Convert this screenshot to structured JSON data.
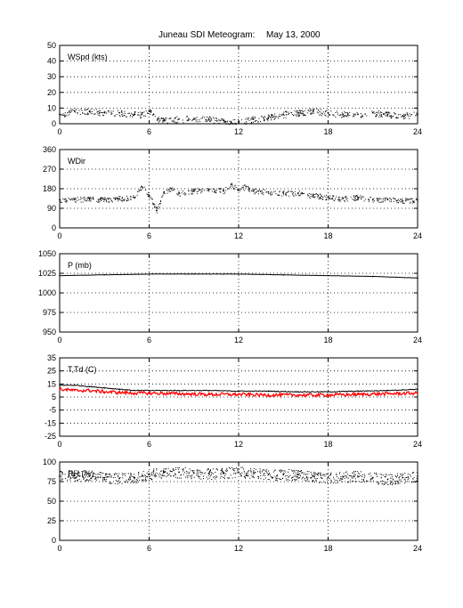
{
  "figure": {
    "title": "Juneau SDI Meteogram:",
    "date": "May 13, 2000"
  },
  "chart_data": [
    {
      "type": "scatter",
      "label": "WSpd (kts)",
      "xlim": [
        0,
        24
      ],
      "ylim": [
        0,
        50
      ],
      "xticks": [
        0,
        6,
        12,
        18,
        24
      ],
      "yticks": [
        0,
        10,
        20,
        30,
        40,
        50
      ],
      "grid": true,
      "series": [
        {
          "color": "#000000",
          "x": [
            0,
            1,
            2,
            3,
            4,
            5,
            5.5,
            6,
            6.3,
            6.6,
            7,
            8,
            9,
            10,
            11,
            11.5,
            12,
            13,
            14,
            15,
            16,
            17,
            18,
            19,
            20,
            21,
            22,
            23,
            24
          ],
          "y": [
            6,
            8,
            8,
            7,
            7,
            6,
            6,
            8,
            6,
            3,
            2,
            3,
            3,
            3,
            2,
            1,
            1,
            3,
            4,
            6,
            7,
            8,
            7,
            6,
            6,
            7,
            6,
            5,
            6
          ]
        }
      ]
    },
    {
      "type": "scatter",
      "label": "WDir",
      "xlim": [
        0,
        24
      ],
      "ylim": [
        0,
        360
      ],
      "xticks": [
        0,
        6,
        12,
        18,
        24
      ],
      "yticks": [
        0,
        90,
        180,
        270,
        360
      ],
      "grid": true,
      "series": [
        {
          "color": "#000000",
          "x": [
            0,
            1,
            2,
            3,
            4,
            5,
            5.5,
            6,
            6.3,
            6.5,
            7,
            7.5,
            8,
            9,
            10,
            11,
            11.5,
            12,
            12.5,
            13,
            14,
            15,
            16,
            17,
            18,
            19,
            20,
            21,
            22,
            23,
            24
          ],
          "y": [
            130,
            130,
            135,
            130,
            135,
            140,
            190,
            150,
            110,
            80,
            165,
            180,
            160,
            170,
            175,
            170,
            200,
            175,
            190,
            170,
            165,
            160,
            160,
            150,
            140,
            135,
            140,
            130,
            130,
            125,
            130
          ]
        }
      ]
    },
    {
      "type": "line",
      "label": "P (mb)",
      "xlim": [
        0,
        24
      ],
      "ylim": [
        950,
        1050
      ],
      "xticks": [
        0,
        6,
        12,
        18,
        24
      ],
      "yticks": [
        950,
        975,
        1000,
        1025,
        1050
      ],
      "grid": true,
      "series": [
        {
          "color": "#000000",
          "x": [
            0,
            3,
            6,
            9,
            12,
            15,
            18,
            21,
            24
          ],
          "y": [
            1022,
            1023,
            1024,
            1024,
            1024,
            1023,
            1022,
            1021,
            1019
          ]
        }
      ]
    },
    {
      "type": "line",
      "label": "T,Td (C)",
      "xlim": [
        0,
        24
      ],
      "ylim": [
        -25,
        35
      ],
      "xticks": [
        0,
        6,
        12,
        18,
        24
      ],
      "yticks": [
        -25,
        -15,
        -5,
        5,
        15,
        25,
        35
      ],
      "grid": true,
      "series": [
        {
          "color": "#000000",
          "x": [
            0,
            1,
            2,
            3,
            4,
            5,
            6,
            8,
            10,
            12,
            14,
            16,
            18,
            20,
            22,
            24
          ],
          "y": [
            14,
            14,
            13,
            12,
            11,
            10,
            10,
            10,
            10,
            9.5,
            9.5,
            9,
            9,
            9.5,
            10,
            11
          ]
        },
        {
          "color": "#ff0000",
          "x": [
            0,
            1,
            2,
            3,
            4,
            5,
            6,
            8,
            10,
            12,
            14,
            16,
            18,
            20,
            22,
            24
          ],
          "y": [
            11,
            10,
            10,
            9,
            8.5,
            8,
            8,
            7.5,
            7,
            7,
            6.5,
            6.5,
            6.5,
            7,
            7.5,
            8
          ]
        }
      ]
    },
    {
      "type": "scatter",
      "label": "RH (%)",
      "xlim": [
        0,
        24
      ],
      "ylim": [
        0,
        100
      ],
      "xticks": [
        0,
        6,
        12,
        18,
        24
      ],
      "yticks": [
        0,
        25,
        50,
        75,
        100
      ],
      "grid": true,
      "series": [
        {
          "color": "#000000",
          "x": [
            0,
            1,
            2,
            3,
            4,
            5,
            6,
            7,
            8,
            9,
            10,
            11,
            12,
            13,
            14,
            15,
            16,
            17,
            18,
            19,
            20,
            21,
            22,
            23,
            24
          ],
          "y": [
            82,
            83,
            82,
            80,
            79,
            80,
            84,
            87,
            87,
            86,
            85,
            86,
            87,
            86,
            84,
            84,
            84,
            82,
            80,
            81,
            82,
            80,
            78,
            80,
            82
          ]
        }
      ]
    }
  ]
}
